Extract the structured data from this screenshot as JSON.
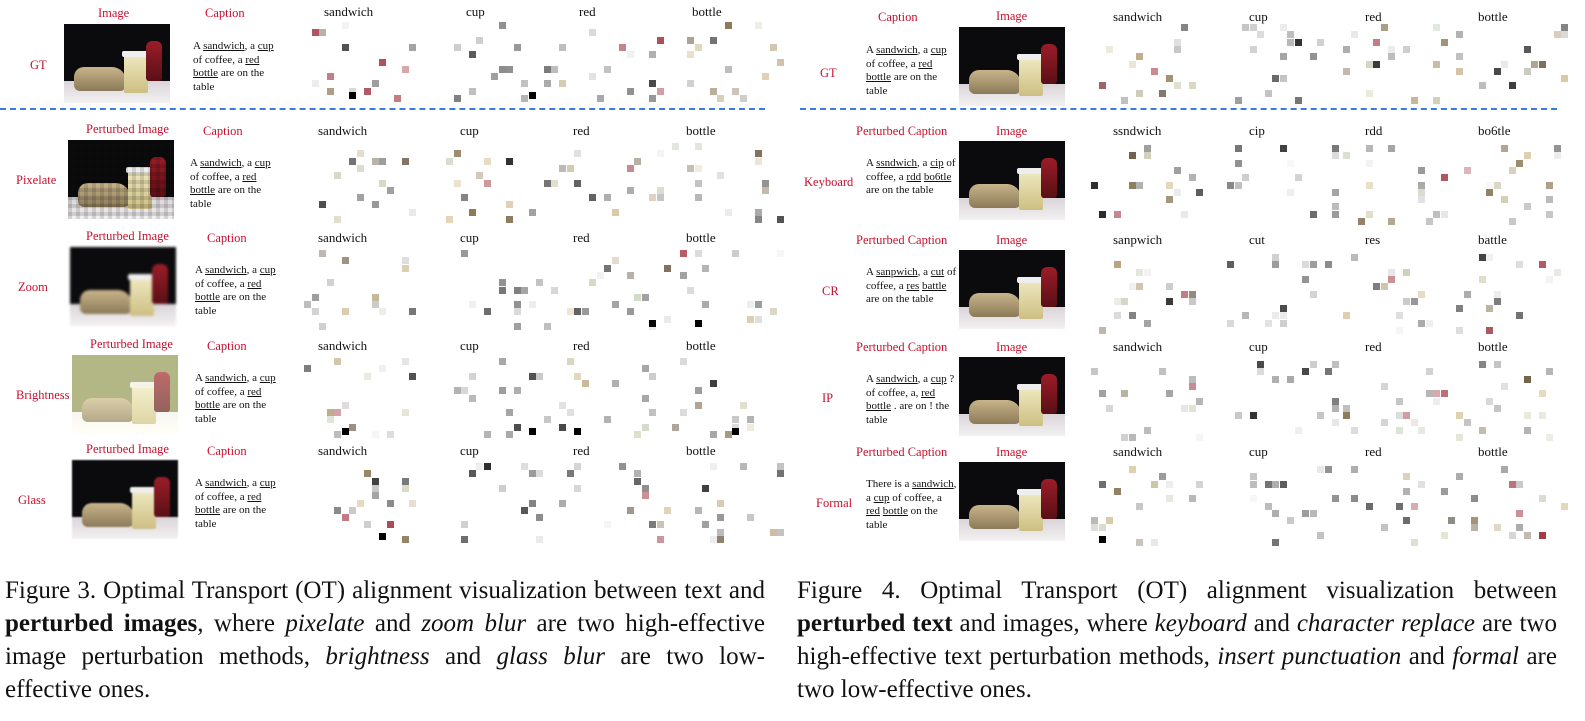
{
  "words": [
    "sandwich",
    "cup",
    "red",
    "bottle"
  ],
  "fig3": {
    "rows": [
      {
        "label": "GT",
        "img_header": "Image",
        "cap_header": "Caption",
        "words": [
          "sandwich",
          "cup",
          "red",
          "bottle"
        ],
        "variant": "normal"
      },
      {
        "label": "Pixelate",
        "img_header": "Perturbed Image",
        "cap_header": "Caption",
        "words": [
          "sandwich",
          "cup",
          "red",
          "bottle"
        ],
        "variant": "pixel"
      },
      {
        "label": "Zoom",
        "img_header": "Perturbed Image",
        "cap_header": "Caption",
        "words": [
          "sandwich",
          "cup",
          "red",
          "bottle"
        ],
        "variant": "zoom"
      },
      {
        "label": "Brightness",
        "img_header": "Perturbed Image",
        "cap_header": "Caption",
        "words": [
          "sandwich",
          "cup",
          "red",
          "bottle"
        ],
        "variant": "bright"
      },
      {
        "label": "Glass",
        "img_header": "Perturbed Image",
        "cap_header": "Caption",
        "words": [
          "sandwich",
          "cup",
          "red",
          "bottle"
        ],
        "variant": "glass"
      }
    ],
    "caption_html_parts": {
      "a": "Figure 3. Optimal Transport (OT) alignment visualization between text and ",
      "b": "perturbed images",
      "c": ", where ",
      "d": "pixelate",
      "e": " and ",
      "f": "zoom blur",
      "g": " are two high-effective image perturbation methods, ",
      "h": "brightness",
      "i": " and ",
      "j": "glass blur",
      "k": " are two low-effective ones."
    }
  },
  "fig4": {
    "rows": [
      {
        "label": "GT",
        "cap_header": "Caption",
        "img_header": "Image",
        "words": [
          "sandwich",
          "cup",
          "red",
          "bottle"
        ],
        "caption": [
          [
            "A ",
            ""
          ],
          [
            "sandwich",
            "u"
          ],
          [
            ", a ",
            ""
          ],
          [
            "cup",
            "u"
          ],
          [
            " of coffee, a ",
            ""
          ],
          [
            "red",
            "u"
          ],
          [
            " ",
            ""
          ],
          [
            "bottle",
            "u"
          ],
          [
            " are on the table",
            ""
          ]
        ]
      },
      {
        "label": "Keyboard",
        "cap_header": "Perturbed Caption",
        "img_header": "Image",
        "words": [
          "ssndwich",
          "cip",
          "rdd",
          "bo6tle"
        ],
        "caption": [
          [
            "A ",
            ""
          ],
          [
            "ssndwich",
            "u"
          ],
          [
            ", a ",
            ""
          ],
          [
            "cip",
            "u"
          ],
          [
            " of coffee, a ",
            ""
          ],
          [
            "rdd",
            "u"
          ],
          [
            " ",
            ""
          ],
          [
            "bo6tle",
            "u"
          ],
          [
            " are on the table",
            ""
          ]
        ]
      },
      {
        "label": "CR",
        "cap_header": "Perturbed Caption",
        "img_header": "Image",
        "words": [
          "sanpwich",
          "cut",
          "res",
          "battle"
        ],
        "caption": [
          [
            "A ",
            ""
          ],
          [
            "sanpwich",
            "u"
          ],
          [
            ", a ",
            ""
          ],
          [
            "cut",
            "u"
          ],
          [
            " of coffee, a ",
            ""
          ],
          [
            "res",
            "u"
          ],
          [
            " ",
            ""
          ],
          [
            "battle",
            "u"
          ],
          [
            " are on the table",
            ""
          ]
        ]
      },
      {
        "label": "IP",
        "cap_header": "Perturbed Caption",
        "img_header": "Image",
        "words": [
          "sandwich",
          "cup",
          "red",
          "bottle"
        ],
        "caption": [
          [
            "A ",
            ""
          ],
          [
            "sandwich",
            "u"
          ],
          [
            ", a ",
            ""
          ],
          [
            "cup",
            "u"
          ],
          [
            " ? of coffee, a, ",
            ""
          ],
          [
            "red",
            "u"
          ],
          [
            " ",
            ""
          ],
          [
            "bottle",
            "u"
          ],
          [
            " . are on ! the table",
            ""
          ]
        ]
      },
      {
        "label": "Formal",
        "cap_header": "Perturbed Caption",
        "img_header": "Image",
        "words": [
          "sandwich",
          "cup",
          "red",
          "bottle"
        ],
        "caption": [
          [
            "There is a ",
            ""
          ],
          [
            "sandwich",
            "u"
          ],
          [
            ", a ",
            ""
          ],
          [
            "cup",
            "u"
          ],
          [
            " of coffee, a ",
            ""
          ],
          [
            "red",
            "u"
          ],
          [
            " ",
            ""
          ],
          [
            "bottle",
            "u"
          ],
          [
            " on the table",
            ""
          ]
        ]
      }
    ],
    "caption_html_parts": {
      "a": "Figure 4. Optimal Transport (OT) alignment visualization between ",
      "b": "perturbed text",
      "c": " and images, where ",
      "d": "keyboard",
      "e": " and ",
      "f": "character replace",
      "g": " are two high-effective text perturbation methods, ",
      "h": "insert punctuation",
      "i": " and ",
      "j": "formal",
      "k": " are two low-effective ones."
    }
  },
  "gt_caption": [
    [
      "A ",
      ""
    ],
    [
      "sandwich",
      "u"
    ],
    [
      ", a ",
      ""
    ],
    [
      "cup",
      "u"
    ],
    [
      " of coffee, a ",
      ""
    ],
    [
      "red",
      "u"
    ],
    [
      " ",
      ""
    ],
    [
      "bottle",
      "u"
    ],
    [
      " are on the table",
      ""
    ]
  ]
}
